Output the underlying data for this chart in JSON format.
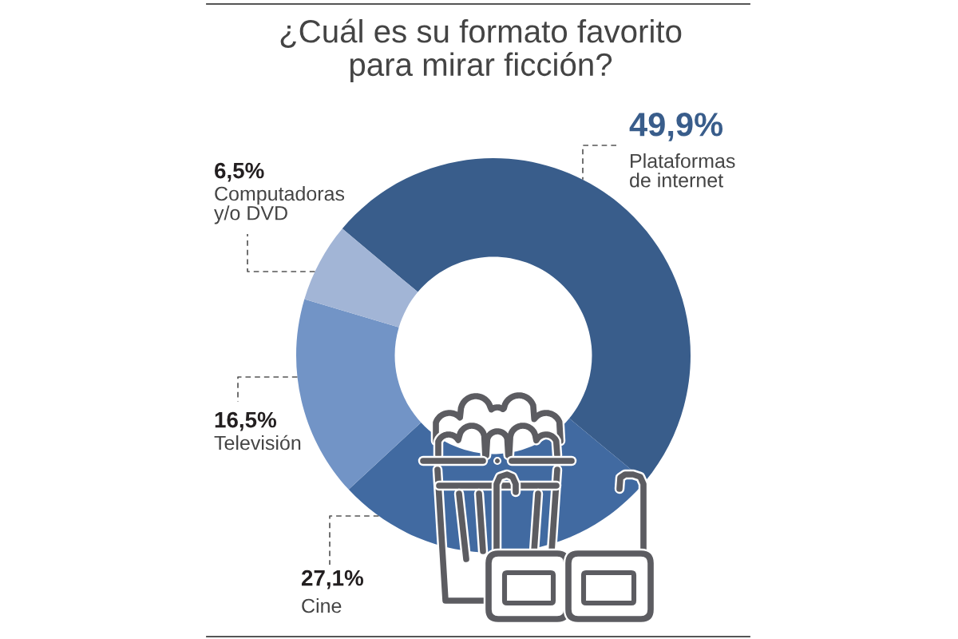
{
  "chart_data": {
    "type": "donut",
    "title": "¿Cuál es su formato favorito\npara mirar ficción?",
    "categories": [
      "Plataformas\nde internet",
      "Cine",
      "Televisión",
      "Computadoras\ny/o DVD"
    ],
    "values": [
      49.9,
      27.1,
      16.5,
      6.5
    ],
    "colors": [
      "#395d8b",
      "#416aa1",
      "#7294c6",
      "#a2b5d6"
    ],
    "value_labels": [
      "49,9%",
      "27,1%",
      "16,5%",
      "6,5%"
    ]
  }
}
